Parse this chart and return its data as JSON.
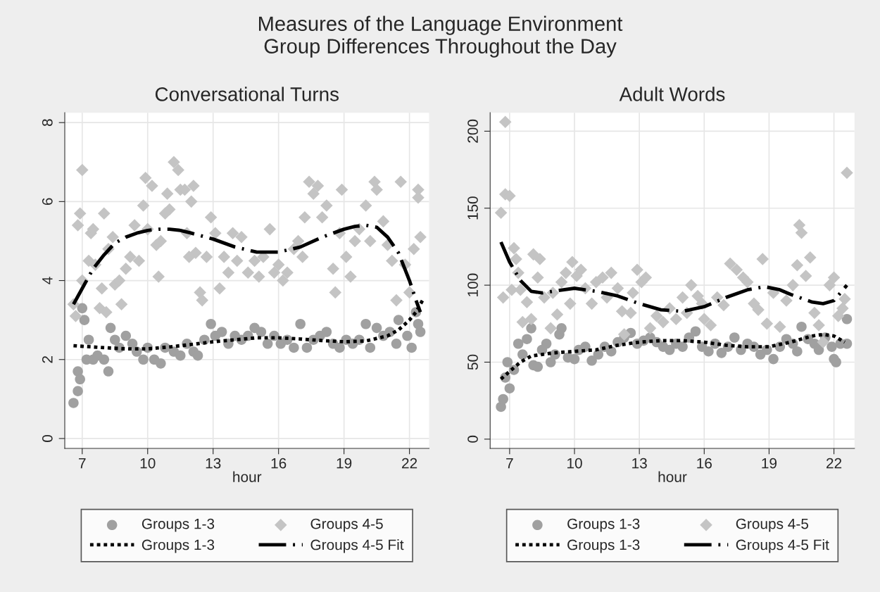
{
  "chart_data": [
    {
      "type": "scatter",
      "title": "Conversational Turns",
      "xlabel": "hour",
      "annotations": [
        "Measures of the Language Environment",
        "Group Differences Throughout the Day"
      ],
      "xlim": [
        6.2,
        22.9
      ],
      "ylim": [
        -0.25,
        8.25
      ],
      "xticks": [
        7,
        10,
        13,
        16,
        19,
        22
      ],
      "yticks": [
        0,
        2,
        4,
        6,
        8
      ],
      "grid": true,
      "legend": "bottom",
      "series": [
        {
          "name": "Groups 1-3",
          "marker": "circle",
          "color": "#a0a0a0",
          "x": [
            6.6,
            6.8,
            6.8,
            6.9,
            7.0,
            7.1,
            7.2,
            7.3,
            7.5,
            7.7,
            8.0,
            8.2,
            8.3,
            8.5,
            8.7,
            9.0,
            9.3,
            9.5,
            9.8,
            10.0,
            10.3,
            10.6,
            10.8,
            11.2,
            11.5,
            11.8,
            12.1,
            12.3,
            12.6,
            12.9,
            13.1,
            13.4,
            13.7,
            14.0,
            14.3,
            14.6,
            14.9,
            15.2,
            15.5,
            15.8,
            16.1,
            16.4,
            16.7,
            17.0,
            17.3,
            17.6,
            17.9,
            18.2,
            18.5,
            18.8,
            19.1,
            19.4,
            19.7,
            20.0,
            20.2,
            20.5,
            20.8,
            21.1,
            21.4,
            21.5,
            21.9,
            22.1,
            22.3,
            22.4,
            22.5
          ],
          "values": [
            0.9,
            1.2,
            1.7,
            1.5,
            3.3,
            3.0,
            2.0,
            2.5,
            2.0,
            2.1,
            2.0,
            1.7,
            2.8,
            2.5,
            2.3,
            2.6,
            2.4,
            2.2,
            2.0,
            2.3,
            2.0,
            1.9,
            2.3,
            2.2,
            2.1,
            2.4,
            2.2,
            2.1,
            2.5,
            2.9,
            2.6,
            2.7,
            2.4,
            2.6,
            2.5,
            2.6,
            2.8,
            2.7,
            2.4,
            2.6,
            2.4,
            2.5,
            2.3,
            2.9,
            2.3,
            2.5,
            2.6,
            2.7,
            2.4,
            2.3,
            2.5,
            2.4,
            2.5,
            2.9,
            2.3,
            2.8,
            2.6,
            2.7,
            2.4,
            3.0,
            2.6,
            2.3,
            3.2,
            2.9,
            2.7
          ]
        },
        {
          "name": "Groups 4-5",
          "marker": "diamond",
          "color": "#c4c4c4",
          "x": [
            6.6,
            6.7,
            6.8,
            6.9,
            7.0,
            7.0,
            7.3,
            7.4,
            7.5,
            7.6,
            7.8,
            7.9,
            8.0,
            8.1,
            8.2,
            8.4,
            8.5,
            8.7,
            8.8,
            9.0,
            9.2,
            9.4,
            9.6,
            9.8,
            9.9,
            10.0,
            10.2,
            10.4,
            10.5,
            10.6,
            10.8,
            10.9,
            11.0,
            11.2,
            11.4,
            11.5,
            11.7,
            11.8,
            11.9,
            12.0,
            12.1,
            12.2,
            12.4,
            12.5,
            12.7,
            12.9,
            13.1,
            13.3,
            13.5,
            13.7,
            13.9,
            14.1,
            14.3,
            14.6,
            14.9,
            15.1,
            15.3,
            15.6,
            15.8,
            16.0,
            16.2,
            16.4,
            16.7,
            16.9,
            17.1,
            17.2,
            17.4,
            17.6,
            17.8,
            18.0,
            18.2,
            18.5,
            18.6,
            18.8,
            18.9,
            19.1,
            19.3,
            19.5,
            19.7,
            20.0,
            20.2,
            20.4,
            20.5,
            20.8,
            21.0,
            21.2,
            21.4,
            21.6,
            21.8,
            22.0,
            22.2,
            22.4,
            22.4,
            22.5
          ],
          "values": [
            3.4,
            3.1,
            5.4,
            5.7,
            6.8,
            4.0,
            4.5,
            5.2,
            5.3,
            4.4,
            3.3,
            3.8,
            5.7,
            3.2,
            4.8,
            5.1,
            3.9,
            4.0,
            3.4,
            4.3,
            4.6,
            5.4,
            4.5,
            5.9,
            6.6,
            5.3,
            6.4,
            4.9,
            4.1,
            5.0,
            5.7,
            6.2,
            5.8,
            7.0,
            6.8,
            6.3,
            6.3,
            5.2,
            4.6,
            6.0,
            6.4,
            4.7,
            3.7,
            3.5,
            4.6,
            5.6,
            5.2,
            3.8,
            4.6,
            4.2,
            5.2,
            4.5,
            5.1,
            4.2,
            4.5,
            4.1,
            4.6,
            5.3,
            4.2,
            4.4,
            4.0,
            4.2,
            4.8,
            5.0,
            4.6,
            5.6,
            6.5,
            6.2,
            6.4,
            5.6,
            5.9,
            4.3,
            3.7,
            5.2,
            6.3,
            4.6,
            4.1,
            5.0,
            5.3,
            5.9,
            5.0,
            6.5,
            6.3,
            5.5,
            4.9,
            4.5,
            3.5,
            6.5,
            4.4,
            3.7,
            4.8,
            6.3,
            6.1,
            5.1
          ]
        },
        {
          "name": "Groups 1-3",
          "type": "line",
          "marker": "none",
          "line_style": "dotted",
          "color": "#000000",
          "x": [
            6.6,
            8,
            9,
            10,
            11,
            12,
            13,
            14,
            15,
            16,
            17,
            18,
            19,
            20,
            21,
            21.5,
            22,
            22.3,
            22.6
          ],
          "values": [
            2.35,
            2.3,
            2.27,
            2.27,
            2.32,
            2.38,
            2.45,
            2.5,
            2.55,
            2.55,
            2.52,
            2.48,
            2.45,
            2.47,
            2.6,
            2.75,
            3.0,
            3.2,
            3.5
          ]
        },
        {
          "name": "Groups 4-5 Fit",
          "type": "line",
          "marker": "none",
          "line_style": "dashed",
          "color": "#000000",
          "x": [
            6.6,
            7,
            7.5,
            8,
            8.5,
            9,
            9.5,
            10,
            10.5,
            11,
            11.5,
            12,
            13,
            14,
            15,
            16,
            17,
            18,
            19,
            19.5,
            20,
            20.5,
            21,
            21.5,
            22,
            22.3,
            22.5
          ],
          "values": [
            3.4,
            3.8,
            4.3,
            4.65,
            4.95,
            5.1,
            5.2,
            5.27,
            5.3,
            5.3,
            5.27,
            5.2,
            5.05,
            4.85,
            4.72,
            4.72,
            4.85,
            5.1,
            5.3,
            5.37,
            5.4,
            5.35,
            5.1,
            4.7,
            4.0,
            3.5,
            3.2
          ]
        }
      ]
    },
    {
      "type": "scatter",
      "title": "Adult Words",
      "xlabel": "hour",
      "xlim": [
        6.1,
        22.95
      ],
      "ylim": [
        -6,
        212
      ],
      "xticks": [
        7,
        10,
        13,
        16,
        19,
        22
      ],
      "yticks": [
        0,
        50,
        100,
        150,
        200
      ],
      "grid": true,
      "legend": "bottom",
      "series": [
        {
          "name": "Groups 1-3",
          "marker": "circle",
          "color": "#a0a0a0",
          "x": [
            6.6,
            6.7,
            6.8,
            6.9,
            7.0,
            7.2,
            7.4,
            7.6,
            7.8,
            8.0,
            8.1,
            8.3,
            8.5,
            8.7,
            8.9,
            9.1,
            9.3,
            9.4,
            9.7,
            10.0,
            10.2,
            10.5,
            10.8,
            11.1,
            11.4,
            11.7,
            12.0,
            12.3,
            12.6,
            12.9,
            13.2,
            13.5,
            13.8,
            14.1,
            14.4,
            14.7,
            15.0,
            15.3,
            15.6,
            15.9,
            16.2,
            16.5,
            16.8,
            17.1,
            17.4,
            17.7,
            18.0,
            18.3,
            18.6,
            18.9,
            19.2,
            19.5,
            19.8,
            20.1,
            20.3,
            20.5,
            20.8,
            21.1,
            21.3,
            21.6,
            21.9,
            22.0,
            22.1,
            22.3,
            22.6,
            22.6
          ],
          "values": [
            21,
            26,
            40,
            50,
            33,
            45,
            62,
            55,
            65,
            72,
            48,
            47,
            58,
            62,
            50,
            55,
            68,
            72,
            53,
            52,
            58,
            60,
            51,
            55,
            60,
            57,
            63,
            66,
            69,
            62,
            64,
            66,
            63,
            60,
            58,
            62,
            60,
            66,
            70,
            60,
            57,
            62,
            56,
            60,
            66,
            58,
            62,
            60,
            55,
            58,
            52,
            60,
            65,
            62,
            57,
            73,
            65,
            62,
            58,
            66,
            60,
            52,
            50,
            62,
            78,
            62
          ]
        },
        {
          "name": "Groups 4-5",
          "marker": "diamond",
          "color": "#c4c4c4",
          "x": [
            6.6,
            6.7,
            6.8,
            6.8,
            7.0,
            7.1,
            7.2,
            7.3,
            7.4,
            7.5,
            7.6,
            7.8,
            8.0,
            8.1,
            8.3,
            8.4,
            8.6,
            8.9,
            9.0,
            9.2,
            9.4,
            9.6,
            9.8,
            9.9,
            10.1,
            10.3,
            10.5,
            10.8,
            11.0,
            11.3,
            11.5,
            11.7,
            12.0,
            12.2,
            12.3,
            12.6,
            12.7,
            12.9,
            13.1,
            13.3,
            13.5,
            13.8,
            14.1,
            14.4,
            14.7,
            15.0,
            15.2,
            15.4,
            15.7,
            15.9,
            16.0,
            16.3,
            16.6,
            16.9,
            17.2,
            17.5,
            17.8,
            18.0,
            18.3,
            18.5,
            18.7,
            18.9,
            19.2,
            19.5,
            19.8,
            20.1,
            20.3,
            20.4,
            20.5,
            20.7,
            20.9,
            21.1,
            21.3,
            21.5,
            21.8,
            22.0,
            22.2,
            22.4,
            22.5,
            22.6
          ],
          "values": [
            147,
            92,
            159,
            206,
            158,
            97,
            124,
            117,
            108,
            97,
            76,
            89,
            78,
            120,
            105,
            117,
            92,
            72,
            95,
            81,
            102,
            108,
            88,
            115,
            106,
            110,
            98,
            88,
            102,
            105,
            92,
            108,
            98,
            83,
            68,
            82,
            95,
            110,
            102,
            105,
            72,
            80,
            76,
            85,
            78,
            92,
            82,
            100,
            93,
            88,
            78,
            74,
            92,
            87,
            114,
            110,
            105,
            102,
            88,
            84,
            117,
            75,
            95,
            73,
            90,
            100,
            113,
            139,
            134,
            106,
            118,
            82,
            74,
            63,
            100,
            105,
            80,
            85,
            91,
            173
          ]
        },
        {
          "name": "Groups 1-3",
          "type": "line",
          "marker": "none",
          "line_style": "dotted",
          "color": "#000000",
          "x": [
            6.6,
            7,
            7.5,
            8,
            9,
            10,
            11,
            12,
            13,
            14,
            15,
            16,
            17,
            18,
            19,
            20,
            21,
            21.5,
            22,
            22.5
          ],
          "values": [
            39,
            44,
            50,
            54,
            56,
            57,
            58,
            61,
            63,
            64,
            64,
            63,
            61,
            60,
            60,
            63,
            67,
            68,
            67,
            63
          ]
        },
        {
          "name": "Groups 4-5 Fit",
          "type": "line",
          "marker": "none",
          "line_style": "dashed",
          "color": "#000000",
          "x": [
            6.6,
            7,
            7.5,
            8,
            8.5,
            9,
            10,
            11,
            12,
            13,
            14,
            15,
            16,
            17,
            18,
            18.8,
            19.5,
            20,
            21,
            21.5,
            22,
            22.6
          ],
          "values": [
            128,
            115,
            103,
            96,
            95,
            96,
            98,
            96,
            93,
            88,
            84,
            83,
            86,
            92,
            97,
            99,
            97,
            94,
            89,
            88,
            90,
            100
          ]
        }
      ]
    }
  ]
}
